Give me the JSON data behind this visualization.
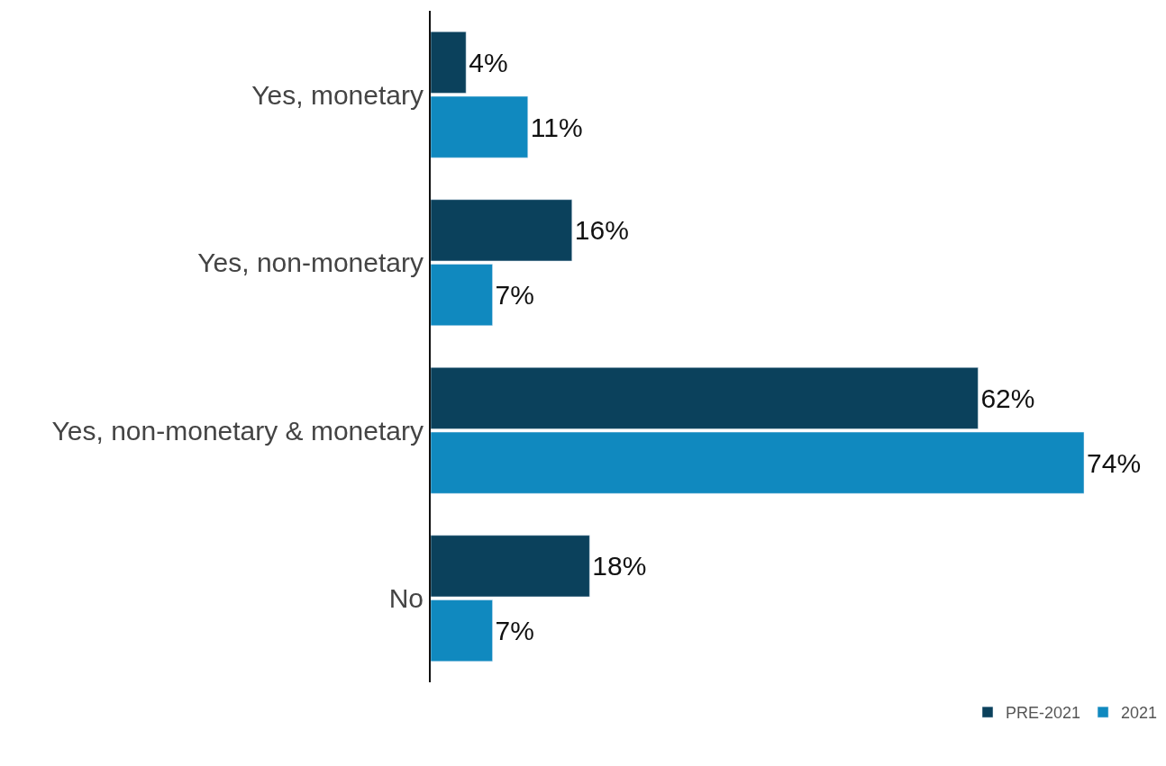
{
  "chart_data": {
    "type": "bar",
    "orientation": "horizontal",
    "categories": [
      "Yes, monetary",
      "Yes, non-monetary",
      "Yes, non-monetary & monetary",
      "No"
    ],
    "series": [
      {
        "name": "PRE-2021",
        "color": "#0b415c",
        "values": [
          4,
          16,
          62,
          18
        ],
        "value_labels": [
          "4%",
          "16%",
          "62%",
          "18%"
        ]
      },
      {
        "name": "2021",
        "color": "#1089bf",
        "values": [
          11,
          7,
          74,
          7
        ],
        "value_labels": [
          "11%",
          "7%",
          "74%",
          "7%"
        ]
      }
    ],
    "legend": "bottom right",
    "tick_labels": "y"
  }
}
